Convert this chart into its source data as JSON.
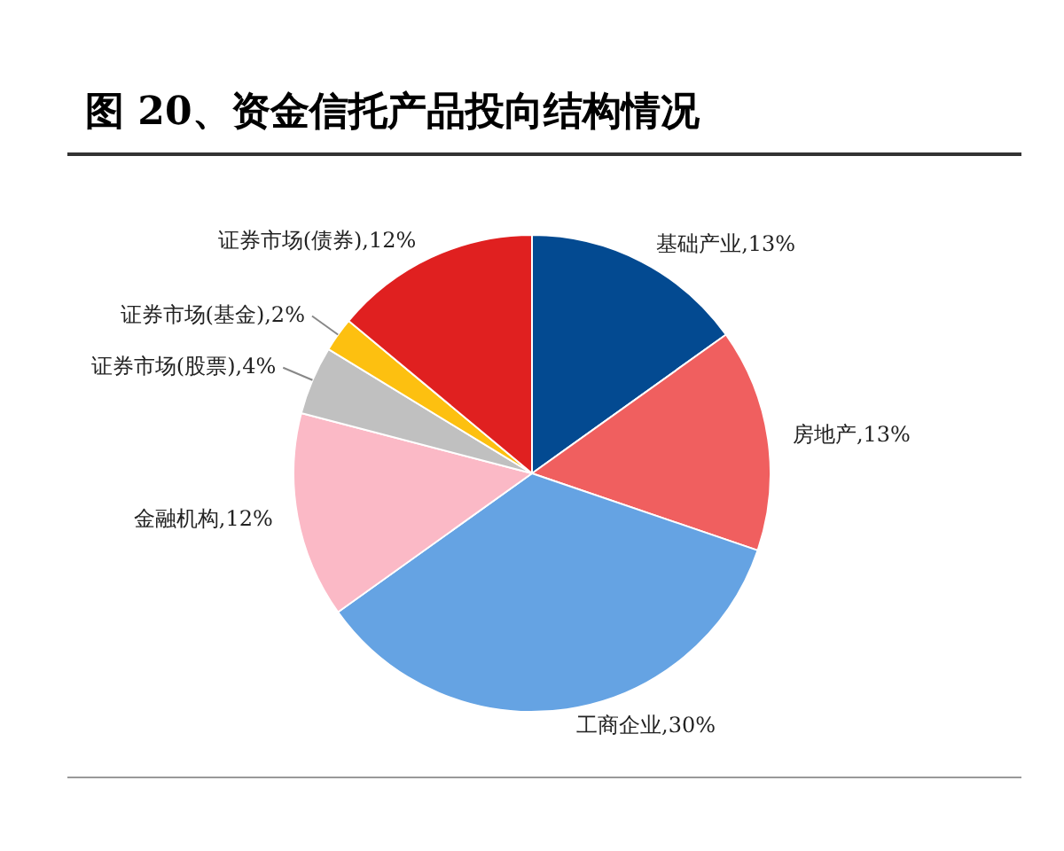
{
  "chart_data": {
    "type": "pie",
    "title": "图 20、资金信托产品投向结构情况",
    "categories": [
      "基础产业",
      "房地产",
      "工商企业",
      "金融机构",
      "证券市场(股票)",
      "证券市场(基金)",
      "证券市场(债券)"
    ],
    "values": [
      13,
      13,
      30,
      12,
      4,
      2,
      12
    ],
    "value_labels": [
      "13%",
      "13%",
      "30%",
      "12%",
      "4%",
      "2%",
      "12%"
    ],
    "colors": [
      "#034a91",
      "#f05f5f",
      "#65a3e3",
      "#fbb9c6",
      "#c0c0c0",
      "#fdc010",
      "#e02020"
    ],
    "legend": false
  }
}
